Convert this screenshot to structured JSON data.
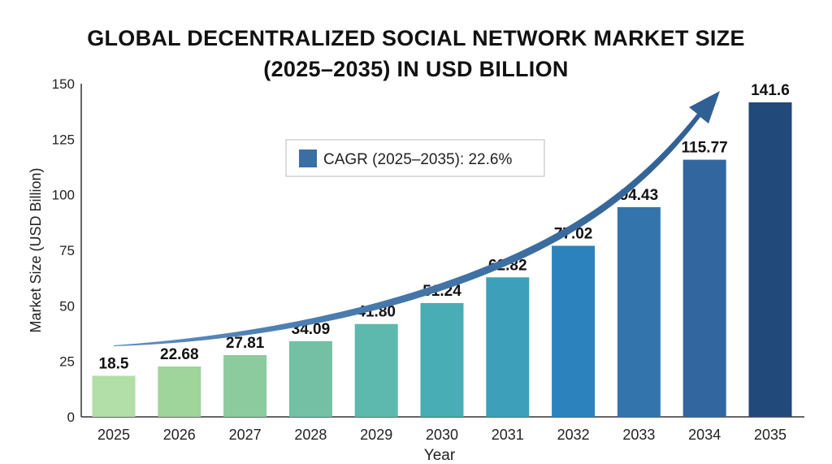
{
  "chart_data": {
    "type": "bar",
    "title_line1": "GLOBAL DECENTRALIZED SOCIAL NETWORK MARKET SIZE",
    "title_line2": "(2025–2035) IN USD BILLION",
    "xlabel": "Year",
    "ylabel": "Market Size (USD Billion)",
    "ylim": [
      0,
      150
    ],
    "yticks": [
      "0",
      "25",
      "50",
      "75",
      "100",
      "125",
      "150"
    ],
    "categories": [
      "2025",
      "2026",
      "2027",
      "2028",
      "2029",
      "2030",
      "2031",
      "2032",
      "2033",
      "2034",
      "2035"
    ],
    "values": [
      18.5,
      22.68,
      27.81,
      34.09,
      41.8,
      51.24,
      62.82,
      77.02,
      94.43,
      115.77,
      141.6
    ],
    "value_labels": [
      "18.5",
      "22.68",
      "27.81",
      "34.09",
      "41.80",
      "51.24",
      "62.82",
      "77.02",
      "94.43",
      "115.77",
      "141.6"
    ],
    "colors": [
      "#b2dea8",
      "#9fd49a",
      "#8ccb9e",
      "#74c0a4",
      "#5db8ad",
      "#48adb5",
      "#3d9fba",
      "#2b82bd",
      "#3474ad",
      "#31669f",
      "#21497a"
    ],
    "legend": {
      "label": "CAGR (2025–2035): 22.6%",
      "color": "#3a6ea5",
      "placement": "top-center"
    },
    "trend_arrow_color": "#34689e",
    "grid": false
  }
}
